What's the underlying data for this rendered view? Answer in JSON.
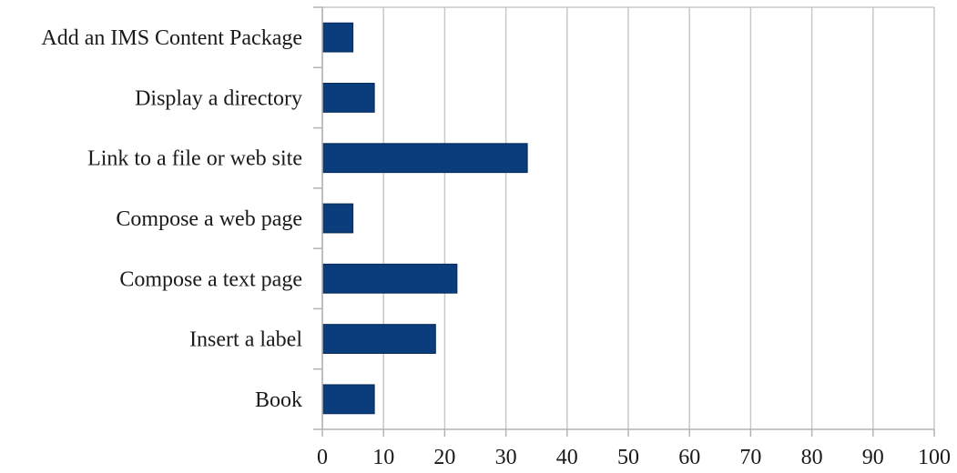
{
  "chart_data": {
    "type": "bar",
    "orientation": "horizontal",
    "title": "",
    "xlabel": "",
    "ylabel": "",
    "categories": [
      "Add an IMS Content Package",
      "Display a directory",
      "Link to a file or web site",
      "Compose a web page",
      "Compose a text page",
      "Insert a label",
      "Book"
    ],
    "values": [
      5,
      8.5,
      33.5,
      5,
      22,
      18.5,
      8.5
    ],
    "xlim": [
      0,
      100
    ],
    "xticks": [
      0,
      10,
      20,
      30,
      40,
      50,
      60,
      70,
      80,
      90,
      100
    ],
    "grid": "vertical",
    "legend": "none",
    "colors": {
      "bar": "#0b3d7c",
      "grid": "#c8c8c8",
      "axis": "#b3b3b3"
    }
  }
}
